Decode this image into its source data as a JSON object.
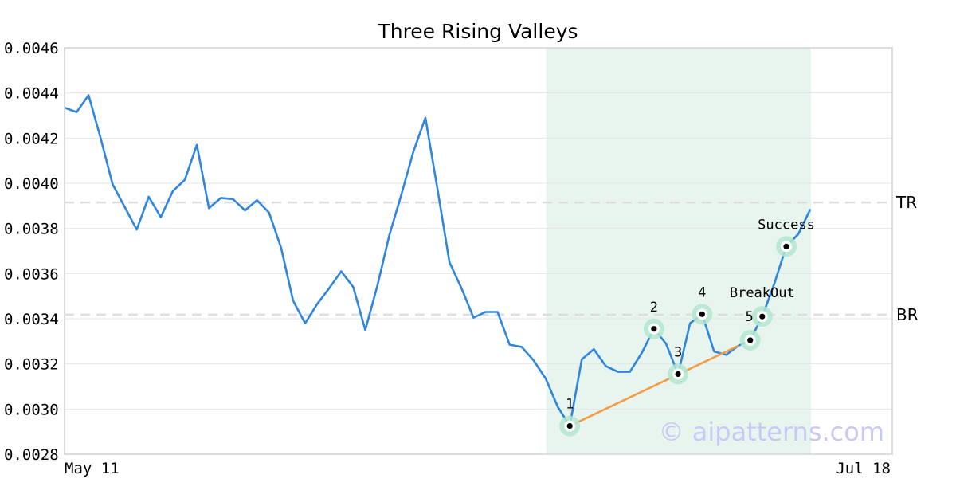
{
  "chart_data": {
    "type": "line",
    "title": "Three Rising Valleys",
    "xlabel": "",
    "ylabel": "",
    "ylim": [
      0.0028,
      0.0046
    ],
    "y_ticks": [
      "0.0028",
      "0.0030",
      "0.0032",
      "0.0034",
      "0.0036",
      "0.0038",
      "0.0040",
      "0.0042",
      "0.0044",
      "0.0046"
    ],
    "x_tick_labels": [
      "May 11",
      "Jul 18"
    ],
    "grid": true,
    "series": [
      {
        "color": "#2e86de",
        "values": [
          0.004335,
          0.004315,
          0.00439,
          0.0042,
          0.003995,
          0.003895,
          0.003795,
          0.00394,
          0.00385,
          0.003965,
          0.004015,
          0.00417,
          0.00389,
          0.003935,
          0.00393,
          0.00388,
          0.003925,
          0.00387,
          0.003715,
          0.00348,
          0.00338,
          0.003465,
          0.003535,
          0.00361,
          0.00354,
          0.00335,
          0.003545,
          0.00377,
          0.00395,
          0.00414,
          0.00429,
          0.003975,
          0.00365,
          0.003535,
          0.003405,
          0.00343,
          0.00343,
          0.003285,
          0.003275,
          0.003215,
          0.003135,
          0.00301,
          0.002925,
          0.00322,
          0.003265,
          0.00319,
          0.003165,
          0.003165,
          0.00325,
          0.003355,
          0.00329,
          0.003155,
          0.00338,
          0.00342,
          0.003255,
          0.00324,
          0.00328,
          0.003305,
          0.00341,
          0.003555,
          0.00372,
          0.003775,
          0.003885
        ]
      }
    ],
    "trendline": {
      "color": "#f39c45",
      "from_index": 42,
      "to_index": 56
    },
    "highlight_band": {
      "from_index": 40,
      "to_index": 62,
      "color": "#e8f5ee"
    },
    "levels": [
      {
        "label": "TR",
        "value": 0.003915
      },
      {
        "label": "BR",
        "value": 0.003418
      }
    ],
    "annotations": [
      {
        "label": "1",
        "index": 42,
        "value": 0.002925,
        "label_pos": "above"
      },
      {
        "label": "2",
        "index": 49,
        "value": 0.003355,
        "label_pos": "above"
      },
      {
        "label": "3",
        "index": 51,
        "value": 0.003155,
        "label_pos": "above"
      },
      {
        "label": "4",
        "index": 53,
        "value": 0.00342,
        "label_pos": "above"
      },
      {
        "label": "",
        "index": 57,
        "value": 0.003305,
        "label_pos": "none"
      },
      {
        "label": "5",
        "index": 58,
        "value": 0.00341,
        "label_pos": "left"
      },
      {
        "label": "BreakOut",
        "index": 58,
        "value": 0.00341,
        "label_pos": "high"
      },
      {
        "label": "Success",
        "index": 60,
        "value": 0.00372,
        "label_pos": "above"
      }
    ],
    "watermark": "© aipatterns.com"
  }
}
